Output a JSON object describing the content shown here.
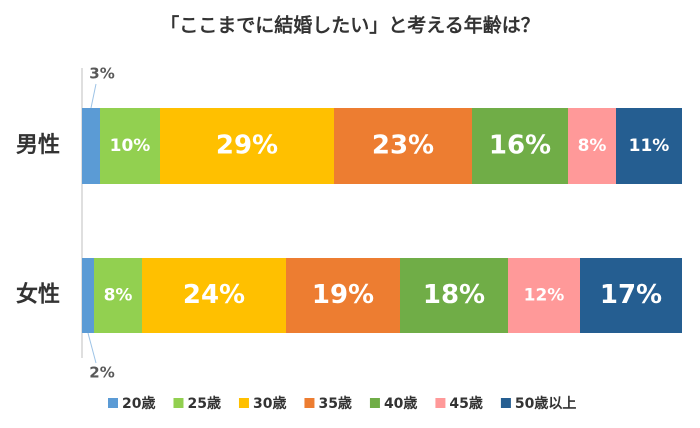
{
  "chart_data": {
    "type": "stacked-bar-horizontal",
    "title": "「ここまでに結婚したい」と考える年齢は？",
    "categories": [
      "男性",
      "女性"
    ],
    "xlim": [
      0,
      100
    ],
    "series": [
      {
        "name": "20歳",
        "color": "#5b9bd5",
        "values": [
          3,
          2
        ],
        "value_labels": [
          "3%",
          "2%"
        ]
      },
      {
        "name": "25歳",
        "color": "#92d050",
        "values": [
          10,
          8
        ],
        "value_labels": [
          "10%",
          "8%"
        ]
      },
      {
        "name": "30歳",
        "color": "#ffc000",
        "values": [
          29,
          24
        ],
        "value_labels": [
          "29%",
          "24%"
        ]
      },
      {
        "name": "35歳",
        "color": "#ed7d31",
        "values": [
          23,
          19
        ],
        "value_labels": [
          "23%",
          "19%"
        ]
      },
      {
        "name": "40歳",
        "color": "#70ad47",
        "values": [
          16,
          18
        ],
        "value_labels": [
          "16%",
          "18%"
        ]
      },
      {
        "name": "45歳",
        "color": "#ff9999",
        "values": [
          8,
          12
        ],
        "value_labels": [
          "8%",
          "12%"
        ]
      },
      {
        "name": "50歳以上",
        "color": "#255e91",
        "values": [
          11,
          17
        ],
        "value_labels": [
          "11%",
          "17%"
        ]
      }
    ]
  }
}
